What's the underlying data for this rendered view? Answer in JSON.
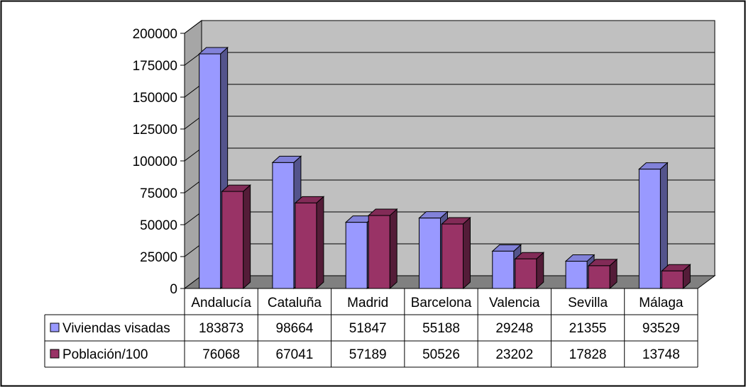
{
  "chart_data": {
    "type": "bar",
    "title": "",
    "xlabel": "",
    "ylabel": "",
    "ylim": [
      0,
      200000
    ],
    "yticks": [
      0,
      25000,
      50000,
      75000,
      100000,
      125000,
      150000,
      175000,
      200000
    ],
    "grid": true,
    "style": "3d-clustered-column",
    "legend": "data-table-left",
    "categories": [
      "Andalucía",
      "Cataluña",
      "Madrid",
      "Barcelona",
      "Valencia",
      "Sevilla",
      "Málaga"
    ],
    "series": [
      {
        "name": "Viviendas visadas",
        "color": "#9999ff",
        "values": [
          183873,
          98664,
          51847,
          55188,
          29248,
          21355,
          93529
        ]
      },
      {
        "name": "Población/100",
        "color": "#993366",
        "values": [
          76068,
          67041,
          57189,
          50526,
          23202,
          17828,
          13748
        ]
      }
    ],
    "wall_color": "#c0c0c0",
    "floor_color": "#808080"
  }
}
